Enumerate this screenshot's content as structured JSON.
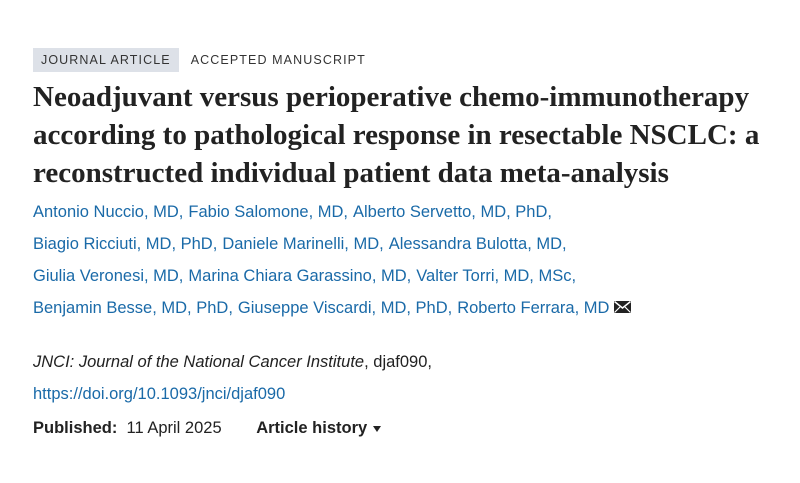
{
  "labels": {
    "type": "JOURNAL ARTICLE",
    "status": "ACCEPTED MANUSCRIPT"
  },
  "title": "Neoadjuvant versus perioperative chemo-immunotherapy according to pathological response in resectable NSCLC: a reconstructed individual patient data meta-analysis",
  "authors": [
    [
      "Antonio Nuccio, MD,",
      "Fabio Salomone, MD,",
      "Alberto Servetto, MD, PhD,"
    ],
    [
      "Biagio Ricciuti, MD, PhD,",
      "Daniele Marinelli, MD,",
      "Alessandra Bulotta, MD,"
    ],
    [
      "Giulia Veronesi, MD,",
      "Marina Chiara Garassino, MD,",
      "Valter Torri, MD, MSc,"
    ],
    [
      "Benjamin Besse, MD, PhD,",
      "Giuseppe Viscardi, MD, PhD,",
      "Roberto Ferrara, MD"
    ]
  ],
  "citation": {
    "journal": "JNCI: Journal of the National Cancer Institute",
    "suffix": ", djaf090,",
    "doi": "https://doi.org/10.1093/jnci/djaf090"
  },
  "published": {
    "label": "Published:",
    "date": "11 April 2025"
  },
  "history": "Article history"
}
